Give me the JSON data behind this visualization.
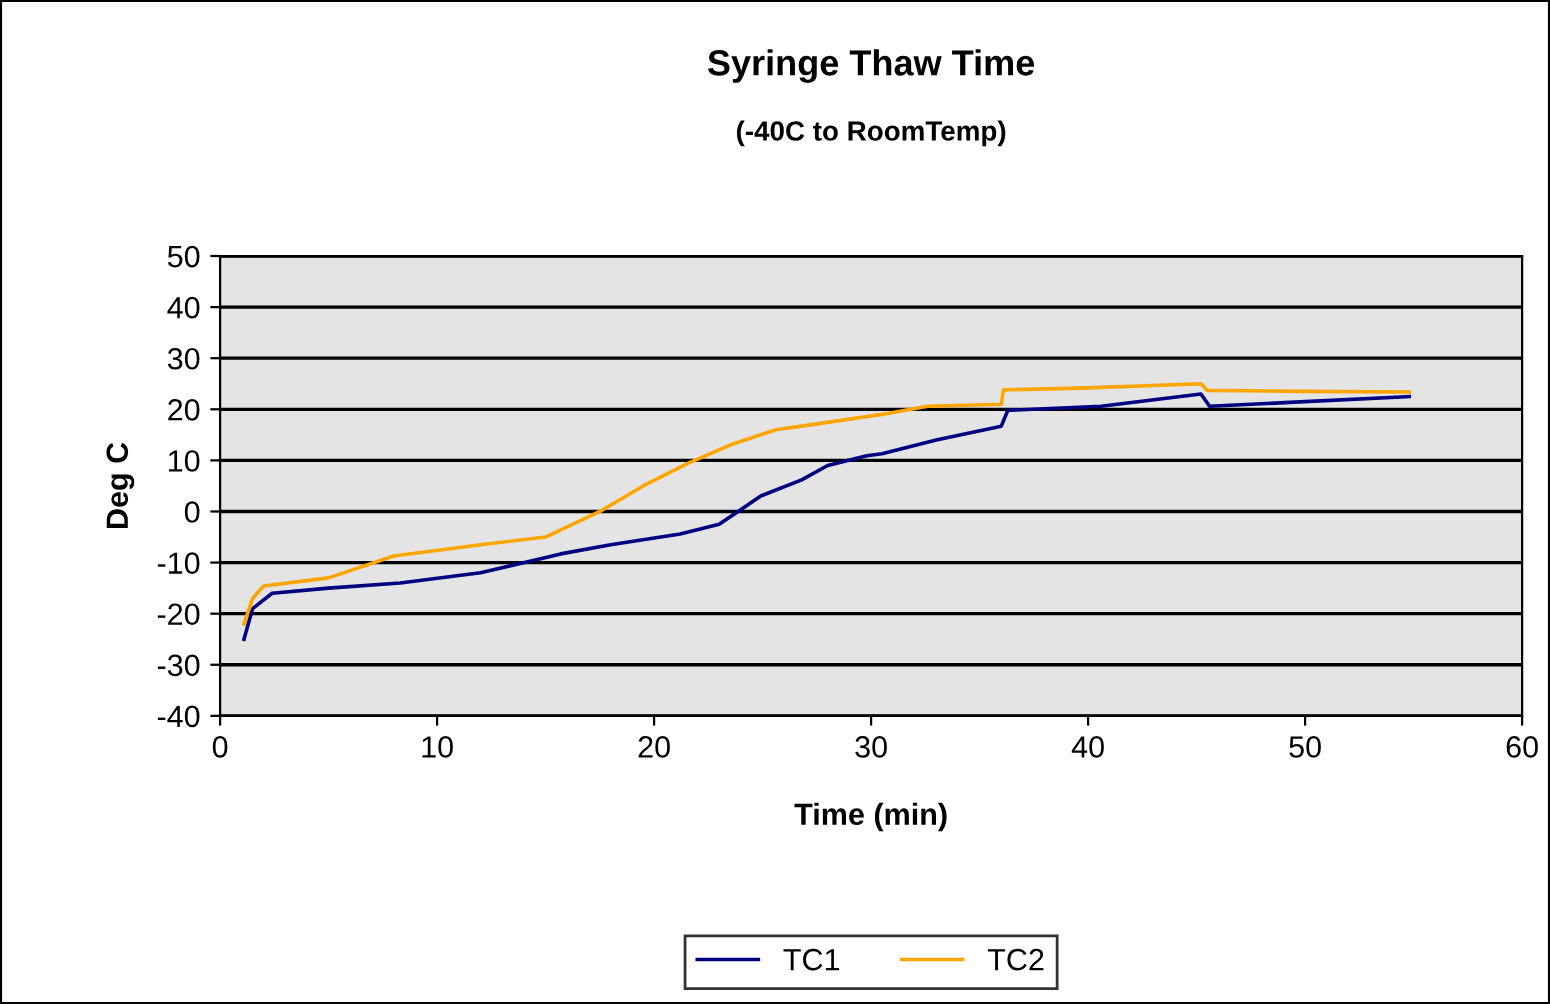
{
  "chart_data": {
    "type": "line",
    "title": "Syringe Thaw Time",
    "subtitle": "(-40C to RoomTemp)",
    "xlabel": "Time (min)",
    "ylabel": "Deg C",
    "xlim": [
      0,
      60
    ],
    "xticks": [
      0,
      10,
      20,
      30,
      40,
      50,
      60
    ],
    "ylim": [
      -40,
      50
    ],
    "yticks": [
      -40,
      -30,
      -20,
      -10,
      0,
      10,
      20,
      30,
      40,
      50
    ],
    "grid": "y",
    "legend": "bottom",
    "marker": "none",
    "line_style": "solid",
    "series": [
      {
        "name": "TC1",
        "color": "#000080",
        "x": [
          1.1,
          1.5,
          2.4,
          5,
          8.3,
          12,
          15.7,
          18,
          21.2,
          23,
          23.7,
          24.9,
          26.8,
          28,
          29.8,
          30.5,
          33,
          36,
          36.3,
          40.6,
          45.2,
          45.6,
          50,
          54.8
        ],
        "values": [
          -25,
          -19,
          -16,
          -15,
          -14,
          -12,
          -8.3,
          -6.5,
          -4.4,
          -2.5,
          -0.5,
          3,
          6.2,
          9,
          10.9,
          11.3,
          14,
          16.7,
          19.8,
          20.6,
          23,
          20.6,
          21.5,
          22.5
        ]
      },
      {
        "name": "TC2",
        "color": "#ffa500",
        "x": [
          1.1,
          1.5,
          2.0,
          5,
          8.0,
          12,
          15,
          17.5,
          19.5,
          21.5,
          23.5,
          25.6,
          26.8,
          30.5,
          32.6,
          36,
          36.1,
          40,
          45.2,
          45.5,
          50,
          54.8
        ],
        "values": [
          -22,
          -17,
          -14.6,
          -13,
          -8.7,
          -6.5,
          -5,
          0,
          5,
          9.3,
          13,
          16,
          16.7,
          19,
          20.6,
          21,
          23.8,
          24.2,
          25,
          23.7,
          23.5,
          23.4
        ]
      }
    ]
  }
}
